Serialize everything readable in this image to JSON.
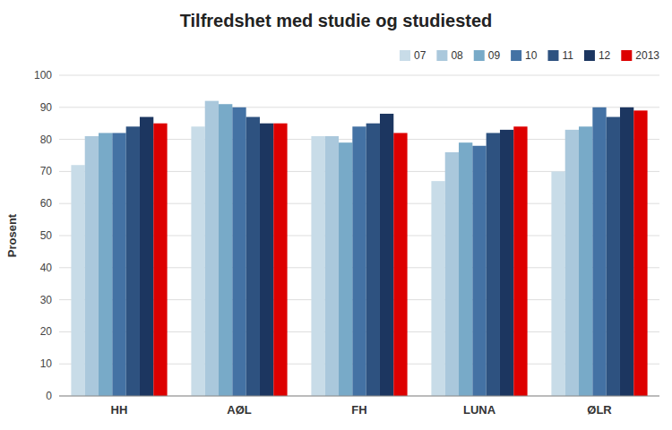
{
  "chart_data": {
    "type": "bar",
    "title": "Tilfredshet med studie og studiested",
    "ylabel": "Prosent",
    "categories": [
      "HH",
      "AØL",
      "FH",
      "LUNA",
      "ØLR"
    ],
    "series": [
      {
        "name": "07",
        "color": "#c8dce8",
        "values": [
          72,
          84,
          81,
          67,
          70
        ]
      },
      {
        "name": "08",
        "color": "#aac8dc",
        "values": [
          81,
          92,
          81,
          76,
          83
        ]
      },
      {
        "name": "09",
        "color": "#78aac8",
        "values": [
          82,
          91,
          79,
          79,
          84
        ]
      },
      {
        "name": "10",
        "color": "#4472a4",
        "values": [
          82,
          90,
          84,
          78,
          90
        ]
      },
      {
        "name": "11",
        "color": "#2e5280",
        "values": [
          84,
          87,
          85,
          82,
          87
        ]
      },
      {
        "name": "12",
        "color": "#1c3660",
        "values": [
          87,
          85,
          88,
          83,
          90
        ]
      },
      {
        "name": "2013",
        "color": "#dd0000",
        "values": [
          85,
          85,
          82,
          84,
          89
        ]
      }
    ],
    "ylim": [
      0,
      100
    ],
    "yticks": [
      0,
      10,
      20,
      30,
      40,
      50,
      60,
      70,
      80,
      90,
      100
    ],
    "grid": true,
    "legend": "upper right"
  }
}
